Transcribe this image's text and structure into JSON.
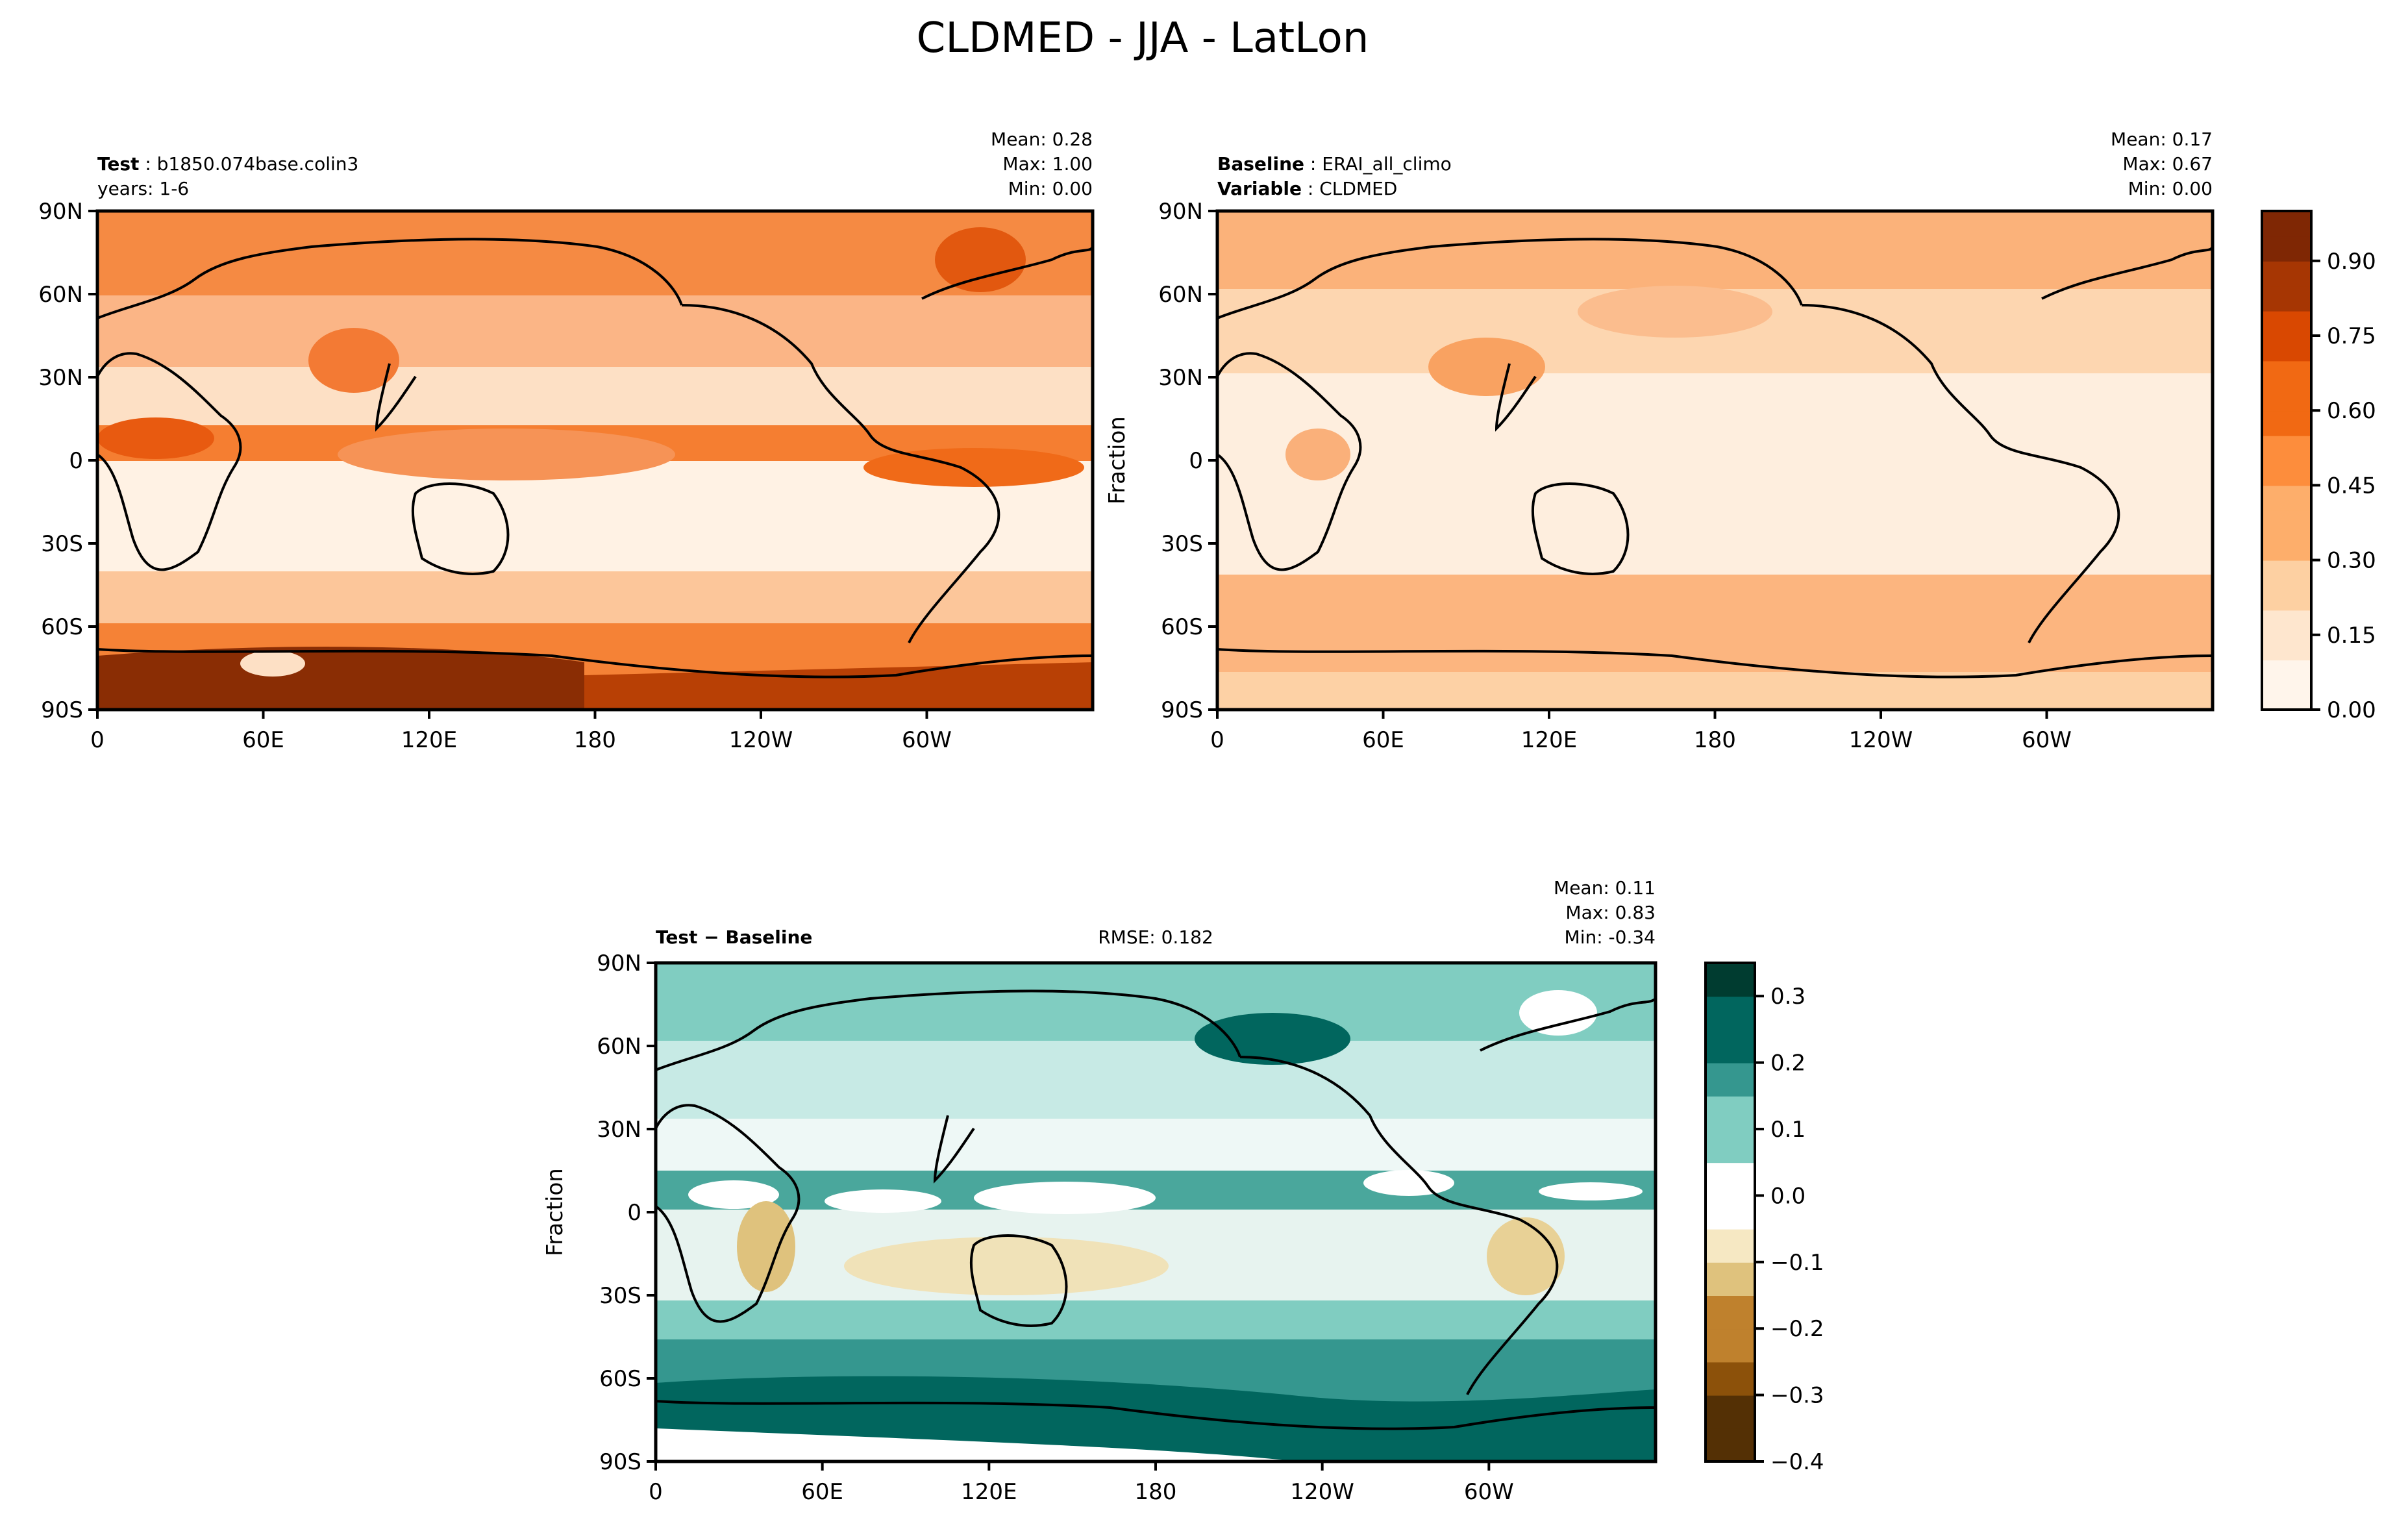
{
  "title": "CLDMED - JJA - LatLon",
  "colors": {
    "orange_scale": [
      "#fff5eb",
      "#fee6ce",
      "#fdd0a2",
      "#fdae6b",
      "#fd8d3c",
      "#f16913",
      "#d94801",
      "#a63603",
      "#7f2704"
    ],
    "diff_scale": [
      "#543005",
      "#8c510a",
      "#bf812d",
      "#dfc27d",
      "#f6e8c3",
      "#ffffff",
      "#c7eae5",
      "#80cdc1",
      "#35978f",
      "#01665e",
      "#003c30"
    ]
  },
  "panels": {
    "test": {
      "label_bold": "Test",
      "label_text": "b1850.074base.colin3",
      "line2": "years: 1-6",
      "stats": {
        "mean": "Mean:  0.28",
        "max": "Max:  1.00",
        "min": "Min:  0.00"
      }
    },
    "baseline": {
      "label_bold": "Baseline",
      "label_text": "ERAI_all_climo",
      "line2_bold": "Variable",
      "line2_text": "CLDMED",
      "stats": {
        "mean": "Mean:  0.17",
        "max": "Max:  0.67",
        "min": "Min:  0.00"
      },
      "ylabel": "Fraction"
    },
    "diff": {
      "label": "Test − Baseline",
      "rmse": "RMSE: 0.182",
      "stats": {
        "mean": "Mean:  0.11",
        "max": "Max:  0.83",
        "min": "Min: -0.34"
      },
      "ylabel": "Fraction"
    }
  },
  "chart_data": [
    {
      "type": "heatmap",
      "name": "Test",
      "x_ticks": [
        "0",
        "60E",
        "120E",
        "180",
        "120W",
        "60W"
      ],
      "y_ticks": [
        "90N",
        "60N",
        "30N",
        "0",
        "30S",
        "60S",
        "90S"
      ],
      "zlim": [
        0,
        1.0
      ]
    },
    {
      "type": "heatmap",
      "name": "Baseline",
      "x_ticks": [
        "0",
        "60E",
        "120E",
        "180",
        "120W",
        "60W"
      ],
      "y_ticks": [
        "90N",
        "60N",
        "30N",
        "0",
        "30S",
        "60S",
        "90S"
      ],
      "colorbar_ticks": [
        "0.00",
        "0.15",
        "0.30",
        "0.45",
        "0.60",
        "0.75",
        "0.90"
      ],
      "zlim": [
        0,
        1.0
      ]
    },
    {
      "type": "heatmap",
      "name": "Test - Baseline",
      "x_ticks": [
        "0",
        "60E",
        "120E",
        "180",
        "120W",
        "60W"
      ],
      "y_ticks": [
        "90N",
        "60N",
        "30N",
        "0",
        "30S",
        "60S",
        "90S"
      ],
      "colorbar_ticks": [
        "0.3",
        "0.2",
        "0.1",
        "0.0",
        "−0.1",
        "−0.2",
        "−0.3",
        "−0.4"
      ],
      "zlim": [
        -0.4,
        0.35
      ]
    }
  ]
}
